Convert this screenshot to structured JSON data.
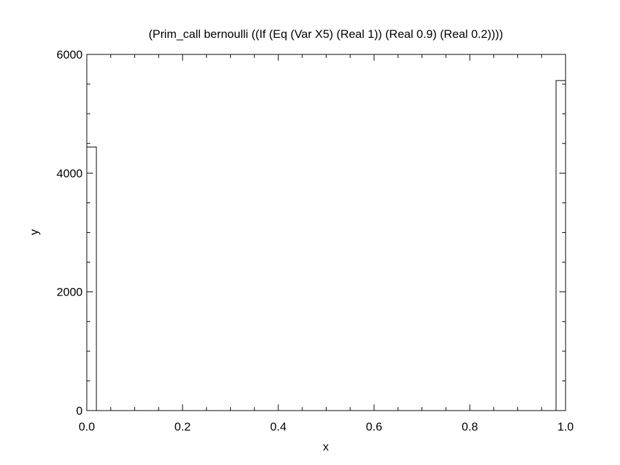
{
  "chart_data": {
    "type": "bar",
    "title": "(Prim_call bernoulli ((If (Eq (Var X5) (Real 1)) (Real 0.9) (Real 0.2))))",
    "xlabel": "x",
    "ylabel": "y",
    "xlim": [
      0,
      1
    ],
    "ylim": [
      0,
      6000
    ],
    "xticks": [
      0.0,
      0.2,
      0.4,
      0.6,
      0.8,
      1.0
    ],
    "xtick_labels": [
      "0.0",
      "0.2",
      "0.4",
      "0.6",
      "0.8",
      "1.0"
    ],
    "xminor_step": 0.05,
    "yticks": [
      0,
      2000,
      4000,
      6000
    ],
    "ytick_labels": [
      "0",
      "2000",
      "4000",
      "6000"
    ],
    "yminor_step": 500,
    "grid": false,
    "bars": [
      {
        "x0": 0.0,
        "x1": 0.02,
        "value": 4440
      },
      {
        "x0": 0.98,
        "x1": 1.0,
        "value": 5560
      }
    ]
  }
}
